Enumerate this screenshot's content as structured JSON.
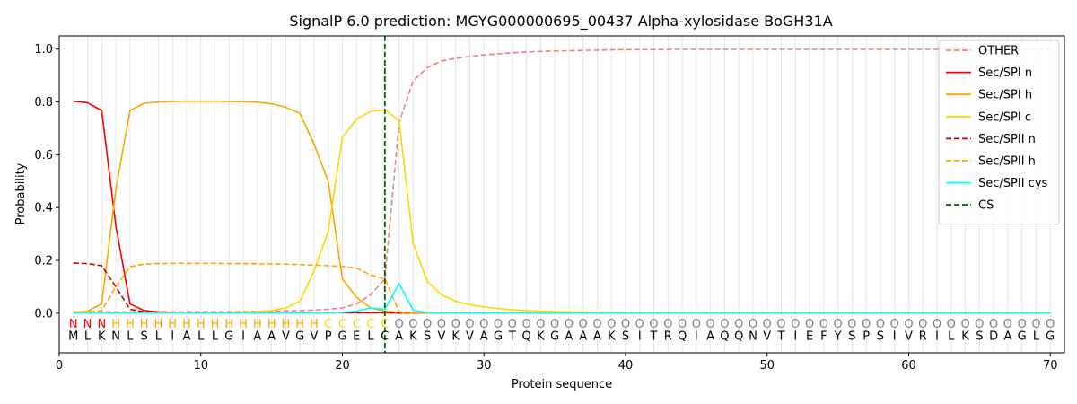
{
  "chart_data": {
    "type": "line",
    "title": "SignalP 6.0 prediction: MGYG000000695_00437 Alpha-xylosidase BoGH31A",
    "xlabel": "Protein sequence",
    "ylabel": "Probability",
    "xlim": [
      0,
      71
    ],
    "ylim": [
      -0.15,
      1.05
    ],
    "xticks": [
      0,
      10,
      20,
      30,
      40,
      50,
      60,
      70
    ],
    "yticks": [
      0.0,
      0.2,
      0.4,
      0.6,
      0.8,
      1.0
    ],
    "ytick_labels": [
      "0.0",
      "0.2",
      "0.4",
      "0.6",
      "0.8",
      "1.0"
    ],
    "legend_position": "top-right",
    "sequence": [
      "M",
      "L",
      "K",
      "N",
      "L",
      "S",
      "L",
      "I",
      "A",
      "L",
      "L",
      "G",
      "I",
      "A",
      "A",
      "V",
      "G",
      "V",
      "P",
      "G",
      "E",
      "L",
      "C",
      "A",
      "K",
      "S",
      "V",
      "K",
      "V",
      "A",
      "G",
      "T",
      "Q",
      "K",
      "G",
      "A",
      "A",
      "A",
      "K",
      "S",
      "I",
      "T",
      "R",
      "Q",
      "I",
      "A",
      "Q",
      "Q",
      "N",
      "V",
      "T",
      "I",
      "E",
      "F",
      "Y",
      "S",
      "P",
      "S",
      "I",
      "V",
      "R",
      "I",
      "L",
      "K",
      "S",
      "D",
      "A",
      "G",
      "L",
      "G"
    ],
    "regions": [
      "N",
      "N",
      "N",
      "H",
      "H",
      "H",
      "H",
      "H",
      "H",
      "H",
      "H",
      "H",
      "H",
      "H",
      "H",
      "H",
      "H",
      "H",
      "C",
      "C",
      "C",
      "C",
      "C",
      "O",
      "O",
      "O",
      "O",
      "O",
      "O",
      "O",
      "O",
      "O",
      "O",
      "O",
      "O",
      "O",
      "O",
      "O",
      "O",
      "O",
      "O",
      "O",
      "O",
      "O",
      "O",
      "O",
      "O",
      "O",
      "O",
      "O",
      "O",
      "O",
      "O",
      "O",
      "O",
      "O",
      "O",
      "O",
      "O",
      "O",
      "O",
      "O",
      "O",
      "O",
      "O",
      "O",
      "O",
      "O",
      "O",
      "O"
    ],
    "region_colors": {
      "N": "#ff0000",
      "H": "#ffa500",
      "C": "#ffd700",
      "O": "#808080"
    },
    "cleavage_site": 23,
    "series": [
      {
        "name": "OTHER",
        "color": "#f08080",
        "dash": "dashed",
        "values": [
          0.005,
          0.005,
          0.005,
          0.005,
          0.005,
          0.005,
          0.005,
          0.005,
          0.005,
          0.005,
          0.005,
          0.005,
          0.006,
          0.007,
          0.008,
          0.009,
          0.01,
          0.012,
          0.015,
          0.02,
          0.035,
          0.07,
          0.13,
          0.72,
          0.88,
          0.93,
          0.955,
          0.965,
          0.972,
          0.978,
          0.982,
          0.986,
          0.989,
          0.991,
          0.993,
          0.994,
          0.995,
          0.996,
          0.997,
          0.998,
          0.998,
          0.998,
          0.999,
          0.999,
          0.999,
          0.999,
          0.999,
          0.999,
          0.999,
          0.999,
          0.999,
          0.999,
          0.999,
          0.999,
          0.999,
          0.999,
          0.999,
          0.999,
          0.999,
          0.999,
          0.999,
          0.999,
          0.999,
          0.999,
          0.999,
          0.999,
          0.999,
          0.999,
          0.999,
          0.999
        ]
      },
      {
        "name": "Sec/SPI n",
        "color": "#ff0000",
        "dash": "solid",
        "values": [
          0.803,
          0.797,
          0.767,
          0.33,
          0.035,
          0.01,
          0.005,
          0.003,
          0.002,
          0.002,
          0.002,
          0.002,
          0.002,
          0.002,
          0.002,
          0.002,
          0.002,
          0.002,
          0.002,
          0.002,
          0.002,
          0.002,
          0.002,
          0.001,
          0.001,
          0.001,
          0.001,
          0.001,
          0.001,
          0.001,
          0.001,
          0.001,
          0.001,
          0.001,
          0.001,
          0.001,
          0.001,
          0.001,
          0.001,
          0.001,
          0.001,
          0.001,
          0.001,
          0.001,
          0.001,
          0.001,
          0.001,
          0.001,
          0.001,
          0.001,
          0.001,
          0.001,
          0.001,
          0.001,
          0.001,
          0.001,
          0.001,
          0.001,
          0.001,
          0.001,
          0.001,
          0.001,
          0.001,
          0.001,
          0.001,
          0.001,
          0.001,
          0.001,
          0.001,
          0.001
        ]
      },
      {
        "name": "Sec/SPI h",
        "color": "#ffa500",
        "dash": "solid",
        "values": [
          0.003,
          0.008,
          0.035,
          0.47,
          0.768,
          0.795,
          0.8,
          0.802,
          0.803,
          0.803,
          0.803,
          0.802,
          0.801,
          0.799,
          0.793,
          0.78,
          0.757,
          0.64,
          0.5,
          0.13,
          0.06,
          0.02,
          0.008,
          0.003,
          0.002,
          0.001,
          0.001,
          0.001,
          0.001,
          0.001,
          0.001,
          0.001,
          0.001,
          0.001,
          0.001,
          0.001,
          0.001,
          0.001,
          0.001,
          0.001,
          0.001,
          0.001,
          0.001,
          0.001,
          0.001,
          0.001,
          0.001,
          0.001,
          0.001,
          0.001,
          0.001,
          0.001,
          0.001,
          0.001,
          0.001,
          0.001,
          0.001,
          0.001,
          0.001,
          0.001,
          0.001,
          0.001,
          0.001,
          0.001,
          0.001,
          0.001,
          0.001,
          0.001,
          0.001,
          0.001
        ]
      },
      {
        "name": "Sec/SPI c",
        "color": "#ffd700",
        "dash": "solid",
        "values": [
          0.001,
          0.001,
          0.001,
          0.001,
          0.001,
          0.001,
          0.001,
          0.001,
          0.001,
          0.002,
          0.002,
          0.003,
          0.004,
          0.006,
          0.01,
          0.02,
          0.045,
          0.16,
          0.31,
          0.665,
          0.735,
          0.765,
          0.77,
          0.73,
          0.265,
          0.12,
          0.07,
          0.045,
          0.032,
          0.024,
          0.018,
          0.013,
          0.01,
          0.008,
          0.006,
          0.005,
          0.004,
          0.003,
          0.003,
          0.002,
          0.002,
          0.002,
          0.002,
          0.002,
          0.002,
          0.002,
          0.002,
          0.002,
          0.002,
          0.002,
          0.002,
          0.002,
          0.002,
          0.002,
          0.002,
          0.002,
          0.002,
          0.002,
          0.002,
          0.002,
          0.002,
          0.002,
          0.002,
          0.002,
          0.002,
          0.002,
          0.002,
          0.002,
          0.002,
          0.002
        ]
      },
      {
        "name": "Sec/SPII n",
        "color": "#cc0000",
        "dash": "dashed",
        "values": [
          0.19,
          0.188,
          0.18,
          0.1,
          0.015,
          0.005,
          0.003,
          0.002,
          0.002,
          0.002,
          0.002,
          0.002,
          0.002,
          0.002,
          0.002,
          0.002,
          0.002,
          0.002,
          0.002,
          0.002,
          0.002,
          0.002,
          0.002,
          0.001,
          0.001,
          0.001,
          0.001,
          0.001,
          0.001,
          0.001,
          0.001,
          0.001,
          0.001,
          0.001,
          0.001,
          0.001,
          0.001,
          0.001,
          0.001,
          0.001,
          0.001,
          0.001,
          0.001,
          0.001,
          0.001,
          0.001,
          0.001,
          0.001,
          0.001,
          0.001,
          0.001,
          0.001,
          0.001,
          0.001,
          0.001,
          0.001,
          0.001,
          0.001,
          0.001,
          0.001,
          0.001,
          0.001,
          0.001,
          0.001,
          0.001,
          0.001,
          0.001,
          0.001,
          0.001,
          0.001
        ]
      },
      {
        "name": "Sec/SPII h",
        "color": "#ffa500",
        "dash": "dashed",
        "values": [
          0.003,
          0.005,
          0.01,
          0.1,
          0.176,
          0.186,
          0.188,
          0.189,
          0.189,
          0.189,
          0.189,
          0.188,
          0.188,
          0.187,
          0.187,
          0.186,
          0.184,
          0.182,
          0.18,
          0.177,
          0.17,
          0.145,
          0.13,
          0.005,
          0.002,
          0.001,
          0.001,
          0.001,
          0.001,
          0.001,
          0.001,
          0.001,
          0.001,
          0.001,
          0.001,
          0.001,
          0.001,
          0.001,
          0.001,
          0.001,
          0.001,
          0.001,
          0.001,
          0.001,
          0.001,
          0.001,
          0.001,
          0.001,
          0.001,
          0.001,
          0.001,
          0.001,
          0.001,
          0.001,
          0.001,
          0.001,
          0.001,
          0.001,
          0.001,
          0.001,
          0.001,
          0.001,
          0.001,
          0.001,
          0.001,
          0.001,
          0.001,
          0.001,
          0.001,
          0.001
        ]
      },
      {
        "name": "Sec/SPII cys",
        "color": "#00ffff",
        "dash": "solid",
        "values": [
          0.001,
          0.001,
          0.001,
          0.001,
          0.001,
          0.001,
          0.001,
          0.001,
          0.001,
          0.001,
          0.001,
          0.001,
          0.001,
          0.001,
          0.001,
          0.001,
          0.001,
          0.001,
          0.001,
          0.003,
          0.008,
          0.02,
          0.015,
          0.112,
          0.012,
          0.002,
          0.001,
          0.001,
          0.001,
          0.001,
          0.001,
          0.001,
          0.001,
          0.001,
          0.001,
          0.001,
          0.001,
          0.001,
          0.001,
          0.001,
          0.001,
          0.001,
          0.001,
          0.001,
          0.001,
          0.001,
          0.001,
          0.001,
          0.001,
          0.001,
          0.001,
          0.001,
          0.001,
          0.001,
          0.001,
          0.001,
          0.001,
          0.001,
          0.001,
          0.001,
          0.001,
          0.001,
          0.001,
          0.001,
          0.001,
          0.001,
          0.001,
          0.001,
          0.001,
          0.001
        ]
      },
      {
        "name": "CS",
        "color": "#006400",
        "dash": "dashed",
        "values": []
      }
    ]
  }
}
